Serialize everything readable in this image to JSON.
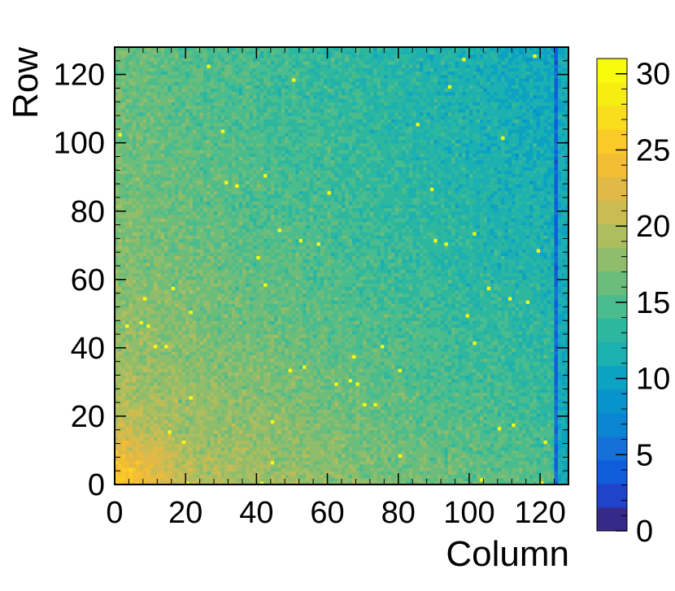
{
  "chart_data": {
    "type": "heatmap",
    "title": "",
    "xlabel": "Column",
    "ylabel": "Row",
    "xlim": [
      0,
      128
    ],
    "ylim": [
      0,
      128
    ],
    "x_ticks": [
      "0",
      "20",
      "40",
      "60",
      "80",
      "100",
      "120"
    ],
    "y_ticks": [
      "0",
      "20",
      "40",
      "60",
      "80",
      "100",
      "120"
    ],
    "nx": 128,
    "ny": 128,
    "z_range": [
      0,
      31
    ],
    "colorbar_ticks": [
      "0",
      "5",
      "10",
      "15",
      "20",
      "25",
      "30"
    ],
    "palette": [
      "#352a87",
      "#1f43c9",
      "#0f5cdd",
      "#1571d8",
      "#0b84d2",
      "#0893cc",
      "#0ca2c2",
      "#1cb0b1",
      "#2eb79f",
      "#4bbc8d",
      "#6cbd7b",
      "#8fbd6c",
      "#aebd5e",
      "#cbbc52",
      "#e2b946",
      "#f3bd34",
      "#fcca26",
      "#f9dc1b",
      "#f6ee10",
      "#f9fb0e"
    ],
    "dead_column": 124,
    "grid": false,
    "colorbar_position": "right"
  }
}
